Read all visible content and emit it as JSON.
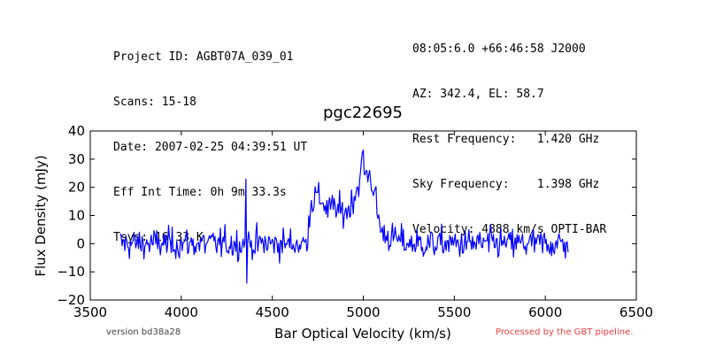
{
  "header": {
    "left": [
      "Project ID: AGBT07A_039_01",
      "Scans: 15-18",
      "Date: 2007-02-25 04:39:51 UT",
      "Eff Int Time: 0h 9m 33.3s",
      "Tsys: 16.33 K"
    ],
    "right": [
      "08:05:6.0 +66:46:58 J2000",
      "AZ: 342.4, EL: 58.7",
      "Rest Frequency:   1.420 GHz",
      "Sky Frequency:    1.398 GHz",
      "Velocity: 4888 km/s OPTI-BAR"
    ]
  },
  "footer": {
    "version": "version bd38a28",
    "processed": "Processed by the GBT pipeline."
  },
  "chart_data": {
    "type": "line",
    "title": "pgc22695",
    "xlabel": "Bar Optical Velocity (km/s)",
    "ylabel": "Flux Density (mJy)",
    "xlim": [
      3500,
      6500
    ],
    "ylim": [
      -20,
      40
    ],
    "xticks": [
      3500,
      4000,
      4500,
      5000,
      5500,
      6000,
      6500
    ],
    "yticks": [
      -20,
      -10,
      0,
      10,
      20,
      30,
      40
    ],
    "grid": false,
    "line_color": "#0000ff",
    "series": [
      {
        "x_start": 3665,
        "x_end": 6125,
        "x_step": 5,
        "noise_rms_mJy": 2.7,
        "features": [
          {
            "velocity": 4355,
            "peak": 23
          },
          {
            "velocity": 4358,
            "min": -14
          }
        ],
        "profile": [
          [
            3665,
            0
          ],
          [
            4690,
            0
          ],
          [
            4700,
            8
          ],
          [
            4710,
            14
          ],
          [
            4740,
            17
          ],
          [
            4780,
            15
          ],
          [
            4800,
            12
          ],
          [
            4840,
            13
          ],
          [
            4880,
            11
          ],
          [
            4920,
            12
          ],
          [
            4950,
            17
          ],
          [
            4980,
            22
          ],
          [
            5000,
            25
          ],
          [
            5030,
            25
          ],
          [
            5060,
            19
          ],
          [
            5080,
            10
          ],
          [
            5100,
            4
          ],
          [
            5130,
            3
          ],
          [
            5160,
            2
          ],
          [
            5250,
            0
          ],
          [
            6125,
            0
          ]
        ]
      }
    ]
  }
}
